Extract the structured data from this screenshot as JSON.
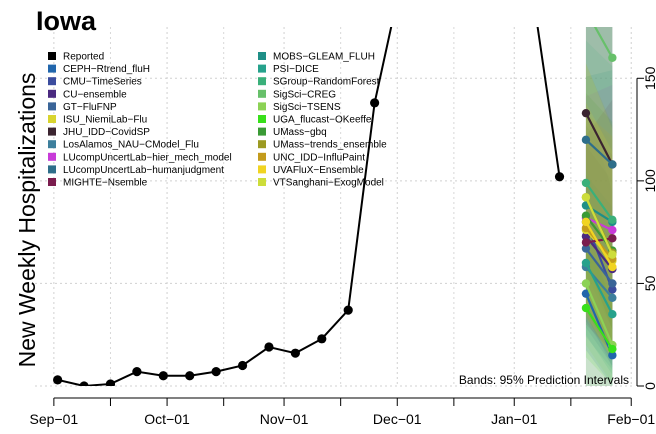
{
  "chart_data": {
    "type": "line",
    "title": "Iowa",
    "ylabel": "New Weekly Hospitalizations",
    "xlabel": "",
    "x_tick_labels": [
      "Sep−01",
      "Oct−01",
      "Nov−01",
      "Dec−01",
      "Jan−01",
      "Feb−01"
    ],
    "y_ticks": [
      0,
      50,
      100,
      150
    ],
    "y_tick_labels": [
      "0",
      "50",
      "100",
      "150"
    ],
    "xlim": [
      "2023-08-27",
      "2024-02-02"
    ],
    "ylim": [
      0,
      175
    ],
    "grid": true,
    "legend_position": "top-left",
    "note": "Bands: 95% Prediction Intervals",
    "reported": {
      "name": "Reported",
      "color": "#000000",
      "points": [
        {
          "x": "2023-09-02",
          "y": 3
        },
        {
          "x": "2023-09-09",
          "y": 0
        },
        {
          "x": "2023-09-16",
          "y": 1
        },
        {
          "x": "2023-09-23",
          "y": 7
        },
        {
          "x": "2023-09-30",
          "y": 5
        },
        {
          "x": "2023-10-07",
          "y": 5
        },
        {
          "x": "2023-10-14",
          "y": 7
        },
        {
          "x": "2023-10-21",
          "y": 10
        },
        {
          "x": "2023-10-28",
          "y": 19
        },
        {
          "x": "2023-11-04",
          "y": 16
        },
        {
          "x": "2023-11-11",
          "y": 23
        },
        {
          "x": "2023-11-18",
          "y": 37
        },
        {
          "x": "2023-11-25",
          "y": 138
        },
        {
          "x": "2023-12-02",
          "y": 197
        },
        {
          "x": "2024-01-06",
          "y": 190
        },
        {
          "x": "2024-01-13",
          "y": 102
        }
      ],
      "segments": [
        [
          0,
          13
        ],
        [
          14,
          15
        ]
      ]
    },
    "forecast_dates": [
      "2024-01-20",
      "2024-01-27"
    ],
    "band": {
      "lower": [
        0,
        0
      ],
      "upper": [
        178,
        178
      ]
    },
    "series": [
      {
        "name": "CEPH−Rtrend_fluH",
        "color": "#2166ac",
        "values": [
          45,
          15
        ]
      },
      {
        "name": "CMU−TimeSeries",
        "color": "#3b4c9e",
        "values": [
          80,
          47
        ]
      },
      {
        "name": "CU−ensemble",
        "color": "#4a2a80",
        "values": [
          73,
          57
        ]
      },
      {
        "name": "GT−FluFNP",
        "color": "#3a6598",
        "values": [
          67,
          50
        ]
      },
      {
        "name": "ISU_NiemiLab−Flu",
        "color": "#d8d42f",
        "values": [
          76,
          61
        ]
      },
      {
        "name": "JHU_IDD−CovidSP",
        "color": "#3b2430",
        "values": [
          133,
          108
        ]
      },
      {
        "name": "LosAlamos_NAU−CModel_Flu",
        "color": "#3d7f9c",
        "values": [
          58,
          43
        ]
      },
      {
        "name": "LUcompUncertLab−hier_mech_model",
        "color": "#c83bd8",
        "values": [
          82,
          76
        ]
      },
      {
        "name": "LUcompUncertLab−humanjudgment",
        "color": "#2e6e8a",
        "values": [
          120,
          108
        ]
      },
      {
        "name": "MIGHTE−Nsemble",
        "color": "#7a1c4e",
        "values": [
          70,
          72
        ]
      },
      {
        "name": "MOBS−GLEAM_FLUH",
        "color": "#1f8f87",
        "values": [
          88,
          80
        ]
      },
      {
        "name": "PSI−DICE",
        "color": "#26a28c",
        "values": [
          60,
          35
        ]
      },
      {
        "name": "SGroup−RandomForest",
        "color": "#3ab07a",
        "values": [
          99,
          81
        ]
      },
      {
        "name": "SigSci−CREG",
        "color": "#67c06a",
        "values": [
          183,
          160
        ]
      },
      {
        "name": "SigSci−TSENS",
        "color": "#8cd255",
        "values": [
          50,
          20
        ]
      },
      {
        "name": "UGA_flucast−OKeeffe",
        "color": "#38e01a",
        "values": [
          38,
          18
        ]
      },
      {
        "name": "UMass−gbq",
        "color": "#3a9a35",
        "values": [
          83,
          66
        ]
      },
      {
        "name": "UMass−trends_ensemble",
        "color": "#9c9a22",
        "values": [
          92,
          65
        ]
      },
      {
        "name": "UNC_IDD−InfluPaint",
        "color": "#c39b1c",
        "values": [
          77,
          62
        ]
      },
      {
        "name": "UVAFluX−Ensemble",
        "color": "#f1d422",
        "values": [
          80,
          58
        ]
      },
      {
        "name": "VTSanghani−ExogModel",
        "color": "#cddd3a",
        "values": [
          92,
          64
        ]
      }
    ]
  }
}
